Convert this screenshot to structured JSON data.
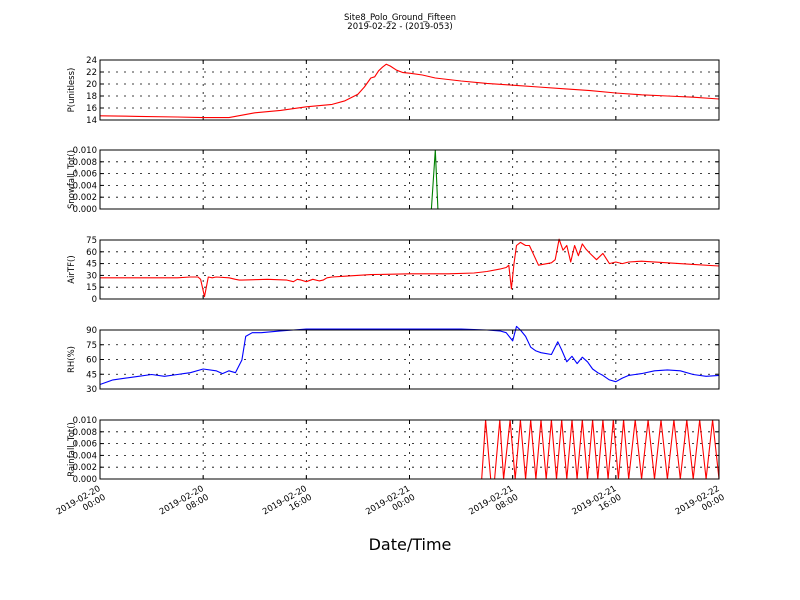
{
  "title": {
    "line1": "Site8_Polo_Ground_Fifteen",
    "line2": "2019-02-22 - (2019-053)"
  },
  "xlabel": "Date/Time",
  "chart_data": {
    "type": "line",
    "x_tick_labels": [
      [
        "2019-02-20",
        "00:00"
      ],
      [
        "2019-02-20",
        "08:00"
      ],
      [
        "2019-02-20",
        "16:00"
      ],
      [
        "2019-02-21",
        "00:00"
      ],
      [
        "2019-02-21",
        "08:00"
      ],
      [
        "2019-02-21",
        "16:00"
      ],
      [
        "2019-02-22",
        "00:00"
      ]
    ],
    "xlim_hours": [
      0,
      48
    ],
    "grid": true,
    "panels": [
      {
        "ylabel": "P(unitless)",
        "color": "#ff0000",
        "ylim": [
          14,
          24
        ],
        "yticks": [
          "14",
          "16",
          "18",
          "20",
          "22",
          "24"
        ],
        "x": [
          0,
          3,
          6,
          8,
          10,
          11,
          12,
          14,
          16,
          18,
          19,
          20,
          20.5,
          21,
          21.3,
          21.6,
          21.9,
          22.2,
          22.5,
          23,
          23.5,
          24,
          25,
          26,
          28,
          30,
          32,
          34,
          36,
          38,
          40,
          42,
          44,
          46,
          48
        ],
        "y": [
          14.7,
          14.6,
          14.5,
          14.4,
          14.4,
          14.8,
          15.2,
          15.6,
          16.2,
          16.6,
          17.2,
          18.3,
          19.5,
          21.0,
          21.2,
          22.2,
          22.8,
          23.3,
          23.0,
          22.3,
          21.9,
          21.8,
          21.5,
          21.0,
          20.5,
          20.1,
          19.8,
          19.5,
          19.2,
          18.9,
          18.5,
          18.2,
          18.0,
          17.8,
          17.5
        ]
      },
      {
        "ylabel": "Snowfall_Tot()",
        "color": "#008000",
        "ylim": [
          0,
          0.01
        ],
        "yticks": [
          "0.000",
          "0.002",
          "0.004",
          "0.006",
          "0.008",
          "0.010"
        ],
        "x": [
          0,
          25.7,
          26.0,
          26.2,
          48
        ],
        "y": [
          0,
          0,
          0.01,
          0,
          0
        ]
      },
      {
        "ylabel": "AirTF()",
        "color": "#ff0000",
        "ylim": [
          0,
          75
        ],
        "yticks": [
          "0",
          "15",
          "30",
          "45",
          "60",
          "75"
        ],
        "x": [
          0,
          3,
          6,
          7,
          7.6,
          7.8,
          8.1,
          8.4,
          8.7,
          9.0,
          10,
          10.5,
          10.8,
          11,
          13,
          14.5,
          15,
          15.3,
          15.6,
          16,
          16.5,
          17.0,
          17.3,
          17.6,
          18,
          19,
          21,
          24,
          27,
          29,
          30,
          31,
          31.5,
          31.7,
          31.9,
          32.1,
          32.3,
          32.6,
          33.0,
          33.3,
          34.0,
          35.0,
          35.3,
          35.6,
          35.9,
          36.2,
          36.5,
          36.8,
          37.1,
          37.4,
          37.7,
          38.0,
          38.5,
          39.0,
          39.5,
          40.0,
          40.5,
          41,
          42,
          44,
          46,
          48
        ],
        "y": [
          27,
          27,
          27,
          28,
          28,
          25,
          3,
          28,
          27,
          28,
          27,
          25,
          24,
          24,
          25,
          24,
          22,
          25,
          24,
          22,
          25,
          23,
          24,
          27,
          28,
          29,
          31,
          32,
          32,
          33,
          35,
          38,
          40,
          43,
          13,
          45,
          68,
          72,
          68,
          68,
          43,
          46,
          50,
          76,
          62,
          68,
          47,
          68,
          55,
          70,
          63,
          58,
          50,
          58,
          45,
          47,
          45,
          47,
          48,
          46,
          44,
          42
        ]
      },
      {
        "ylabel": "RH(%)",
        "color": "#0000ff",
        "ylim": [
          30,
          95
        ],
        "yticks": [
          "30",
          "45",
          "60",
          "75",
          "90"
        ],
        "x": [
          0,
          1,
          2,
          3,
          4,
          5,
          6,
          6.5,
          7,
          8,
          9,
          9.5,
          10,
          10.5,
          11,
          11.3,
          11.8,
          12.5,
          14,
          15,
          16,
          18,
          20,
          22,
          24,
          26,
          28,
          30,
          31,
          31.5,
          32,
          32.3,
          32.6,
          33.0,
          33.4,
          33.8,
          34.2,
          35.0,
          35.5,
          35.8,
          36.2,
          36.6,
          37.0,
          37.4,
          37.8,
          38.2,
          38.6,
          39.0,
          39.5,
          40,
          40.5,
          41,
          42,
          43,
          44,
          45,
          46,
          47,
          48
        ],
        "y": [
          35,
          40,
          42,
          44,
          46,
          44,
          46,
          47,
          48,
          52,
          50,
          47,
          50,
          48,
          62,
          88,
          92,
          92,
          94,
          95,
          96,
          96,
          96,
          96,
          96,
          96,
          96,
          95,
          94,
          92,
          83,
          99,
          95,
          88,
          76,
          72,
          70,
          68,
          82,
          73,
          60,
          66,
          58,
          65,
          60,
          52,
          48,
          45,
          40,
          38,
          42,
          45,
          47,
          50,
          51,
          50,
          46,
          44,
          45
        ]
      },
      {
        "ylabel": "Rainfall_Tot()",
        "color": "#ff0000",
        "ylim": [
          0,
          0.01
        ],
        "yticks": [
          "0.000",
          "0.002",
          "0.004",
          "0.006",
          "0.008",
          "0.010"
        ],
        "x": [
          0,
          29.6,
          29.9,
          30.3,
          30.6,
          31.0,
          31.3,
          31.8,
          32.2,
          32.6,
          33.0,
          33.4,
          33.8,
          34.2,
          34.6,
          35.0,
          35.4,
          35.8,
          36.2,
          36.6,
          37.0,
          37.4,
          37.8,
          38.2,
          38.6,
          39.0,
          39.4,
          39.8,
          40.2,
          40.6,
          41.0,
          41.5,
          42.0,
          42.5,
          43.0,
          43.5,
          44.0,
          44.5,
          45.0,
          45.5,
          46.0,
          46.5,
          47.0,
          47.5,
          48
        ],
        "y": [
          0,
          0,
          0.01,
          0,
          0,
          0.01,
          0,
          0.01,
          0,
          0.01,
          0,
          0.01,
          0,
          0.01,
          0,
          0.01,
          0,
          0.01,
          0,
          0.01,
          0,
          0.01,
          0,
          0.01,
          0,
          0.01,
          0,
          0.01,
          0,
          0.01,
          0,
          0.01,
          0,
          0.01,
          0,
          0.01,
          0,
          0.01,
          0,
          0.01,
          0,
          0.01,
          0,
          0.01,
          0
        ]
      }
    ]
  }
}
